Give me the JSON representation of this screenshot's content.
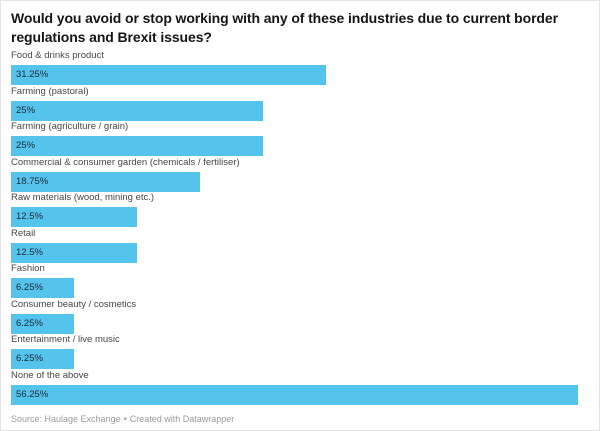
{
  "page": {
    "background": "#ffffff",
    "border_color": "#e4e4e4"
  },
  "chart_data": {
    "type": "bar",
    "orientation": "horizontal",
    "title": "Would you avoid or stop working with any of these industries due to current border regulations and Brexit issues?",
    "categories": [
      "Food & drinks product",
      "Farming (pastoral)",
      "Farming (agriculture / grain)",
      "Commercial & consumer garden (chemicals / fertiliser)",
      "Raw materials (wood, mining etc.)",
      "Retail",
      "Fashion",
      "Consumer beauty / cosmetics",
      "Entertainment / live music",
      "None of the above"
    ],
    "values": [
      31.25,
      25,
      25,
      18.75,
      12.5,
      12.5,
      6.25,
      6.25,
      6.25,
      56.25
    ],
    "value_labels": [
      "31.25%",
      "25%",
      "25%",
      "18.75%",
      "12.5%",
      "12.5%",
      "6.25%",
      "6.25%",
      "6.25%",
      "56.25%"
    ],
    "unit": "%",
    "xlim": [
      0,
      56.25
    ],
    "grid": false,
    "legend": "none",
    "value_label_position": "inside-left",
    "bar_color": "#55c4ed",
    "value_label_color": "#1d2630",
    "category_label_color": "#464646",
    "title_color": "#151515"
  },
  "footer": {
    "source_text": "Source: Haulage Exchange",
    "separator": "•",
    "credit_text": "Created with Datawrapper",
    "text_color": "#9b9b9b"
  }
}
